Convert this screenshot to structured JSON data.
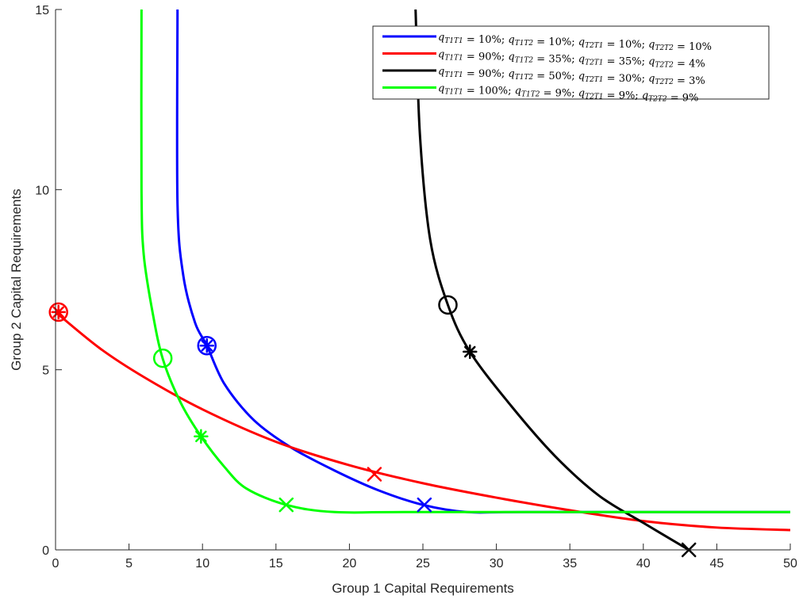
{
  "chart_data": {
    "type": "line",
    "xlabel": "Group 1 Capital Requirements",
    "ylabel": "Group 2 Capital Requirements",
    "xlim": [
      0,
      50
    ],
    "ylim": [
      0,
      15
    ],
    "xticks": [
      0,
      5,
      10,
      15,
      20,
      25,
      30,
      35,
      40,
      45,
      50
    ],
    "yticks": [
      0,
      5,
      10,
      15
    ],
    "grid": false,
    "legend_position": "top-right",
    "series": [
      {
        "name": "q_{T1T1} = 10%; q_{T1T2} = 10%; q_{T2T1} = 10%; q_{T2T2} = 10%",
        "legend": {
          "q11": "10%",
          "q12": "10%",
          "q21": "10%",
          "q22": "10%"
        },
        "color": "#0000ff",
        "points": [
          [
            8.3,
            15
          ],
          [
            8.3,
            9.6
          ],
          [
            8.7,
            7.6
          ],
          [
            9.5,
            6.3
          ],
          [
            10.3,
            5.67
          ],
          [
            11.5,
            4.6
          ],
          [
            13.5,
            3.6
          ],
          [
            16,
            2.85
          ],
          [
            19,
            2.2
          ],
          [
            22,
            1.65
          ],
          [
            25,
            1.25
          ],
          [
            28,
            1.05
          ],
          [
            32,
            1.05
          ],
          [
            50,
            1.05
          ]
        ],
        "markers": [
          {
            "symbol": "circle",
            "x": 10.3,
            "y": 5.67
          },
          {
            "symbol": "asterisk",
            "x": 10.3,
            "y": 5.67
          },
          {
            "symbol": "cross",
            "x": 25.1,
            "y": 1.25
          }
        ]
      },
      {
        "name": "q_{T1T1} = 90%; q_{T1T2} = 35%; q_{T2T1} = 35%; q_{T2T2} = 4%",
        "legend": {
          "q11": "90%",
          "q12": "35%",
          "q21": "35%",
          "q22": "4%"
        },
        "color": "#ff0000",
        "points": [
          [
            0,
            6.6
          ],
          [
            3,
            5.6
          ],
          [
            6,
            4.8
          ],
          [
            10,
            3.9
          ],
          [
            15,
            3.0
          ],
          [
            20,
            2.35
          ],
          [
            25,
            1.85
          ],
          [
            30,
            1.45
          ],
          [
            35,
            1.1
          ],
          [
            40,
            0.8
          ],
          [
            45,
            0.62
          ],
          [
            50,
            0.55
          ]
        ],
        "markers": [
          {
            "symbol": "circle",
            "x": 0.2,
            "y": 6.6
          },
          {
            "symbol": "asterisk",
            "x": 0.2,
            "y": 6.6
          },
          {
            "symbol": "cross",
            "x": 21.7,
            "y": 2.1
          }
        ]
      },
      {
        "name": "q_{T1T1} = 90%; q_{T1T2} = 50%; q_{T2T1} = 30%; q_{T2T2} = 3%",
        "legend": {
          "q11": "90%",
          "q12": "50%",
          "q21": "30%",
          "q22": "3%"
        },
        "color": "#000000",
        "points": [
          [
            24.5,
            15
          ],
          [
            24.8,
            11.5
          ],
          [
            25.5,
            8.6
          ],
          [
            26.7,
            6.8
          ],
          [
            28.2,
            5.5
          ],
          [
            31,
            4.0
          ],
          [
            34,
            2.6
          ],
          [
            37,
            1.5
          ],
          [
            40,
            0.75
          ],
          [
            43.1,
            0.0
          ]
        ],
        "markers": [
          {
            "symbol": "circle",
            "x": 26.7,
            "y": 6.8
          },
          {
            "symbol": "asterisk",
            "x": 28.2,
            "y": 5.5
          },
          {
            "symbol": "cross",
            "x": 43.1,
            "y": 0.0
          }
        ]
      },
      {
        "name": "q_{T1T1} = 100%; q_{T1T2} = 9%; q_{T2T1} = 9%; q_{T2T2} = 9%",
        "legend": {
          "q11": "100%",
          "q12": "9%",
          "q21": "9%",
          "q22": "9%"
        },
        "color": "#00ff00",
        "points": [
          [
            5.85,
            15
          ],
          [
            5.85,
            10
          ],
          [
            6.0,
            8.2
          ],
          [
            6.6,
            6.6
          ],
          [
            7.3,
            5.3
          ],
          [
            8.5,
            4.1
          ],
          [
            9.9,
            3.15
          ],
          [
            11.5,
            2.3
          ],
          [
            13,
            1.7
          ],
          [
            15.7,
            1.25
          ],
          [
            19,
            1.05
          ],
          [
            25,
            1.05
          ],
          [
            50,
            1.05
          ]
        ],
        "markers": [
          {
            "symbol": "circle",
            "x": 7.3,
            "y": 5.32
          },
          {
            "symbol": "asterisk",
            "x": 9.9,
            "y": 3.15
          },
          {
            "symbol": "cross",
            "x": 15.7,
            "y": 1.25
          }
        ]
      }
    ]
  }
}
